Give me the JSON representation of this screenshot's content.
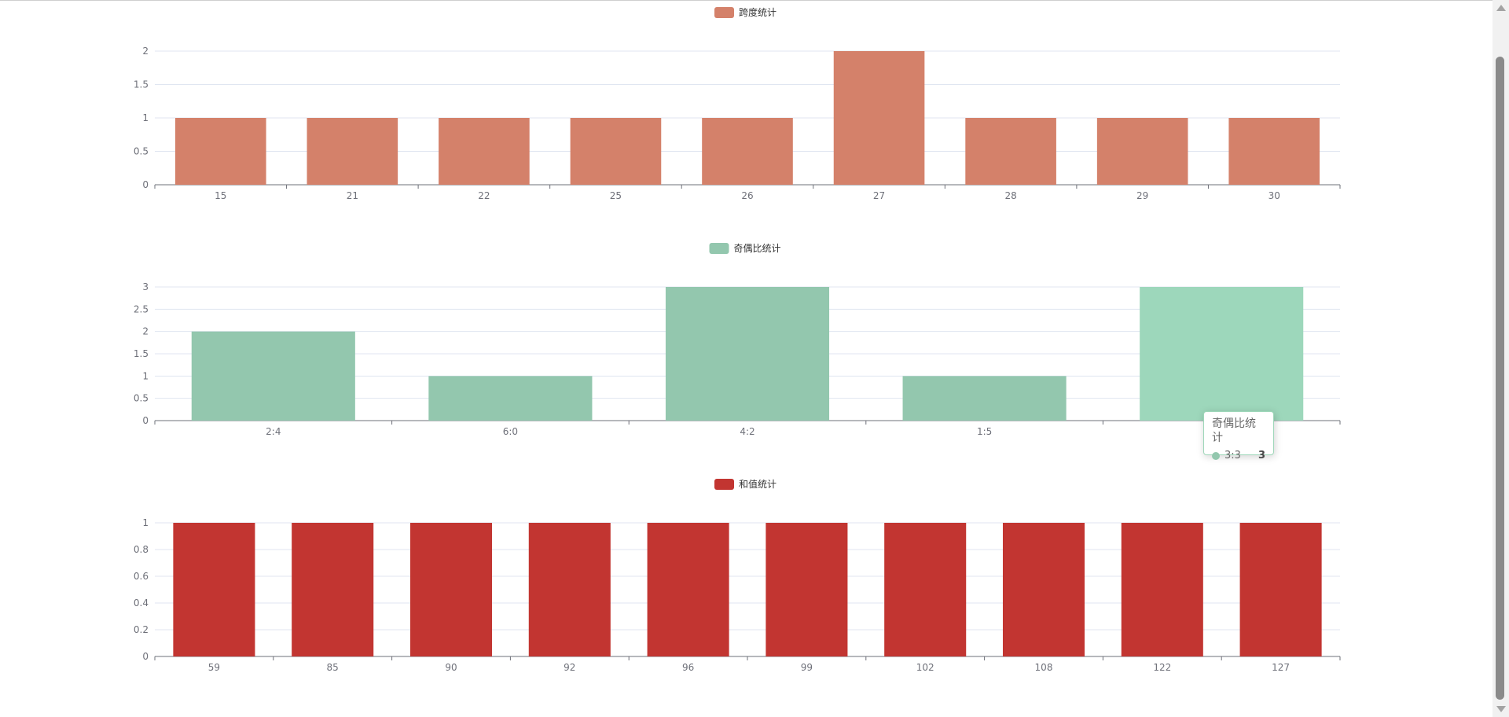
{
  "chart_data": [
    {
      "type": "bar",
      "title": "",
      "legend": "跨度统计",
      "legend_position": "top-center",
      "color": "#d4816a",
      "categories": [
        "15",
        "21",
        "22",
        "25",
        "26",
        "27",
        "28",
        "29",
        "30"
      ],
      "values": [
        1,
        1,
        1,
        1,
        1,
        2,
        1,
        1,
        1
      ],
      "yticks": [
        "0",
        "0.5",
        "1",
        "1.5",
        "2"
      ],
      "ylim": [
        0,
        2
      ],
      "grid": true
    },
    {
      "type": "bar",
      "title": "",
      "legend": "奇偶比统计",
      "legend_position": "top-center",
      "color": "#93c7ae",
      "highlight_color": "#9dd7bb",
      "categories": [
        "2:4",
        "6:0",
        "4:2",
        "1:5",
        "3:3"
      ],
      "values": [
        2,
        1,
        3,
        1,
        3
      ],
      "yticks": [
        "0",
        "0.5",
        "1",
        "1.5",
        "2",
        "2.5",
        "3"
      ],
      "ylim": [
        0,
        3
      ],
      "grid": true,
      "hovered_index": 4
    },
    {
      "type": "bar",
      "title": "",
      "legend": "和值统计",
      "legend_position": "top-center",
      "color": "#c23531",
      "categories": [
        "59",
        "85",
        "90",
        "92",
        "96",
        "99",
        "102",
        "108",
        "122",
        "127"
      ],
      "values": [
        1,
        1,
        1,
        1,
        1,
        1,
        1,
        1,
        1,
        1
      ],
      "yticks": [
        "0",
        "0.2",
        "0.4",
        "0.6",
        "0.8",
        "1"
      ],
      "ylim": [
        0,
        1
      ],
      "grid": true
    }
  ],
  "tooltip": {
    "title": "奇偶比统计",
    "label": "3:3",
    "value": "3",
    "dot_color": "#93c7ae"
  },
  "colors": {
    "axis": "#6e7079",
    "grid": "#e0e6f1",
    "scrollbar_thumb": "#8a8a8a"
  }
}
